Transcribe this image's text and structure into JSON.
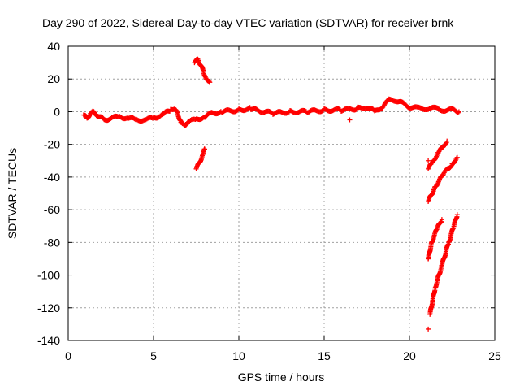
{
  "chart_data": {
    "type": "scatter",
    "title": "Day 290 of 2022, Sidereal Day-to-day VTEC variation (SDTVAR) for receiver brnk",
    "xlabel": "GPS time / hours",
    "ylabel": "SDTVAR / TECUs",
    "xlim": [
      0,
      25
    ],
    "ylim": [
      -140,
      40
    ],
    "xticks": [
      "0",
      "5",
      "10",
      "15",
      "20",
      "25"
    ],
    "yticks": [
      "40",
      "20",
      "0",
      "-20",
      "-40",
      "-60",
      "-80",
      "-100",
      "-120",
      "-140"
    ],
    "grid": true,
    "marker": "+",
    "color": "#ff0000",
    "series": [
      {
        "name": "main-trace",
        "points": [
          [
            0.9,
            -2
          ],
          [
            1.1,
            -4
          ],
          [
            1.3,
            -1
          ],
          [
            1.5,
            0
          ],
          [
            1.8,
            -3
          ],
          [
            2.1,
            -5
          ],
          [
            2.5,
            -4
          ],
          [
            3,
            -3
          ],
          [
            3.5,
            -4
          ],
          [
            4,
            -5
          ],
          [
            4.5,
            -5
          ],
          [
            5,
            -4
          ],
          [
            5.5,
            -2
          ],
          [
            6,
            1
          ],
          [
            6.2,
            2
          ],
          [
            6.4,
            -1
          ],
          [
            6.6,
            -6
          ],
          [
            6.8,
            -9
          ],
          [
            7,
            -6
          ],
          [
            7.5,
            -5
          ],
          [
            8,
            -3
          ],
          [
            8.4,
            -1
          ],
          [
            9,
            0
          ],
          [
            10,
            1
          ],
          [
            10.7,
            2
          ],
          [
            11,
            1
          ],
          [
            12,
            -1
          ],
          [
            13,
            0
          ],
          [
            14,
            0
          ],
          [
            15,
            1
          ],
          [
            16,
            1
          ],
          [
            17,
            2
          ],
          [
            17.5,
            3
          ],
          [
            18,
            0
          ],
          [
            18.4,
            3
          ],
          [
            18.8,
            7
          ],
          [
            19.2,
            7
          ],
          [
            19.6,
            5
          ],
          [
            20,
            3
          ],
          [
            20.5,
            2
          ],
          [
            21,
            2
          ],
          [
            21.5,
            2
          ],
          [
            22,
            1
          ],
          [
            22.5,
            1
          ],
          [
            22.9,
            0
          ]
        ]
      },
      {
        "name": "arc-8h-upper",
        "points": [
          [
            7.4,
            30
          ],
          [
            7.6,
            32
          ],
          [
            7.8,
            28
          ],
          [
            8,
            22
          ],
          [
            8.3,
            18
          ]
        ]
      },
      {
        "name": "arc-8h-lower",
        "points": [
          [
            7.5,
            -35
          ],
          [
            7.7,
            -31
          ],
          [
            7.9,
            -26
          ],
          [
            8,
            -23
          ]
        ]
      },
      {
        "name": "arc-21h-a",
        "points": [
          [
            21.1,
            -35
          ],
          [
            21.4,
            -30
          ],
          [
            21.7,
            -25
          ],
          [
            22,
            -21
          ],
          [
            22.2,
            -18
          ]
        ]
      },
      {
        "name": "arc-21h-b",
        "points": [
          [
            21.1,
            -55
          ],
          [
            21.5,
            -46
          ],
          [
            22,
            -38
          ],
          [
            22.5,
            -32
          ],
          [
            22.8,
            -28
          ]
        ]
      },
      {
        "name": "arc-21h-c",
        "points": [
          [
            21.1,
            -90
          ],
          [
            21.3,
            -80
          ],
          [
            21.6,
            -72
          ],
          [
            21.9,
            -66
          ]
        ]
      },
      {
        "name": "arc-21h-d",
        "points": [
          [
            21.2,
            -124
          ],
          [
            21.5,
            -108
          ],
          [
            21.9,
            -94
          ],
          [
            22.3,
            -80
          ],
          [
            22.6,
            -70
          ],
          [
            22.8,
            -63
          ]
        ]
      },
      {
        "name": "outliers",
        "points": [
          [
            16.5,
            -5
          ],
          [
            21.1,
            -30
          ],
          [
            21.1,
            -133
          ],
          [
            21.1,
            -90
          ]
        ]
      }
    ]
  }
}
